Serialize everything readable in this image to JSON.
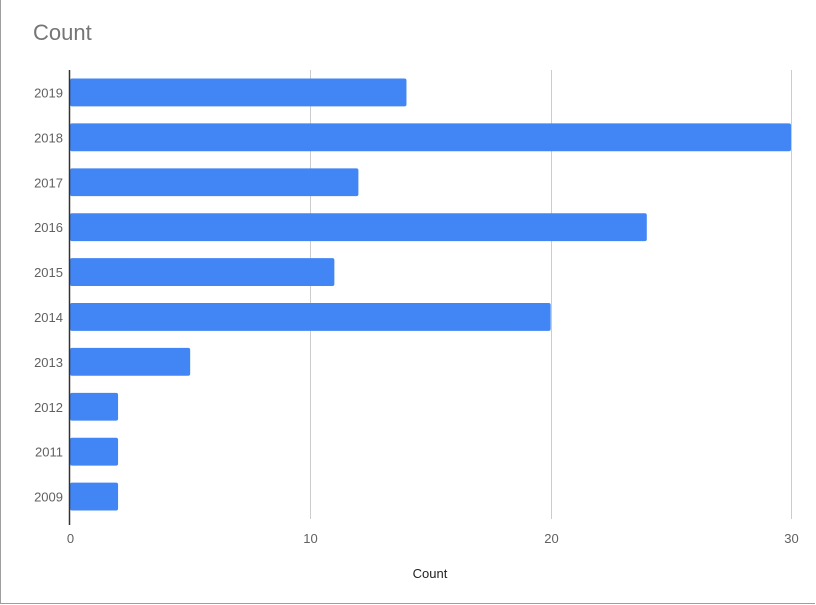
{
  "chart_data": {
    "type": "bar",
    "orientation": "horizontal",
    "title": "Count",
    "xlabel": "Count",
    "ylabel": "",
    "categories": [
      "2019",
      "2018",
      "2017",
      "2016",
      "2015",
      "2014",
      "2013",
      "2012",
      "2011",
      "2009"
    ],
    "values": [
      14,
      30,
      12,
      24,
      11,
      20,
      5,
      2,
      2,
      2
    ],
    "xlim": [
      0,
      30
    ],
    "xticks": [
      0,
      10,
      20,
      30
    ],
    "xtick_labels": [
      "0",
      "10",
      "20",
      "30"
    ],
    "grid": true,
    "legend": "none",
    "bar_color": "#4285f4",
    "gridline_color": "#cccccc",
    "axis_color": "#333333"
  }
}
